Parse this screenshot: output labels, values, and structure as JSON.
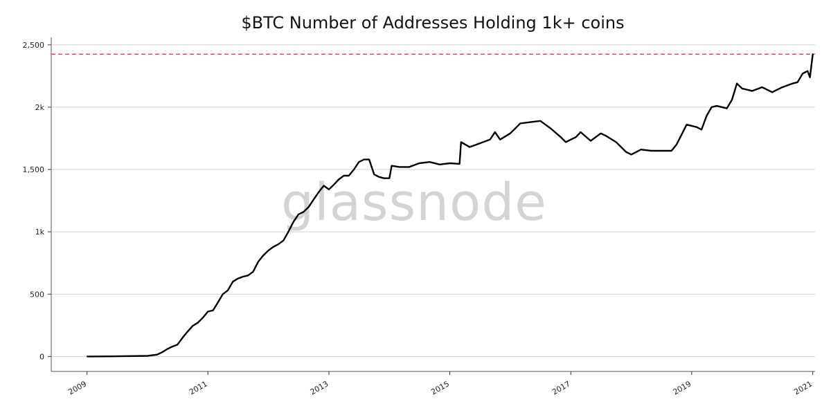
{
  "chart_data": {
    "type": "line",
    "title": "$BTC Number of Addresses Holding 1k+ coins",
    "xlabel": "",
    "ylabel": "",
    "watermark": "glassnode",
    "x_ticks": [
      "2009",
      "2011",
      "2013",
      "2015",
      "2017",
      "2019",
      "2021"
    ],
    "y_ticks": [
      {
        "value": 0,
        "label": "0"
      },
      {
        "value": 500,
        "label": "500"
      },
      {
        "value": 1000,
        "label": "1k"
      },
      {
        "value": 1500,
        "label": "1,500"
      },
      {
        "value": 2000,
        "label": "2k"
      },
      {
        "value": 2500,
        "label": "2,500"
      }
    ],
    "xlim": [
      "2008-05-30",
      "2021-01-15"
    ],
    "ylim": [
      -120,
      2560
    ],
    "grid": "horizontal",
    "line_color": "#000000",
    "reference_line": {
      "value": 2425,
      "color": "#e5454a",
      "style": "dashed"
    },
    "series": [
      {
        "values": [
          [
            "2009-01-03",
            0
          ],
          [
            "2009-06-01",
            1
          ],
          [
            "2010-01-01",
            5
          ],
          [
            "2010-03-01",
            15
          ],
          [
            "2010-04-01",
            35
          ],
          [
            "2010-05-01",
            60
          ],
          [
            "2010-06-01",
            80
          ],
          [
            "2010-07-01",
            95
          ],
          [
            "2010-08-01",
            150
          ],
          [
            "2010-09-01",
            200
          ],
          [
            "2010-10-01",
            245
          ],
          [
            "2010-11-01",
            270
          ],
          [
            "2010-12-01",
            310
          ],
          [
            "2011-01-01",
            360
          ],
          [
            "2011-02-01",
            370
          ],
          [
            "2011-03-01",
            430
          ],
          [
            "2011-04-01",
            500
          ],
          [
            "2011-05-01",
            530
          ],
          [
            "2011-06-01",
            600
          ],
          [
            "2011-07-01",
            625
          ],
          [
            "2011-08-01",
            640
          ],
          [
            "2011-09-01",
            650
          ],
          [
            "2011-10-01",
            680
          ],
          [
            "2011-11-01",
            760
          ],
          [
            "2011-12-01",
            810
          ],
          [
            "2012-01-01",
            850
          ],
          [
            "2012-02-01",
            880
          ],
          [
            "2012-03-01",
            900
          ],
          [
            "2012-04-01",
            930
          ],
          [
            "2012-05-01",
            1000
          ],
          [
            "2012-06-01",
            1080
          ],
          [
            "2012-07-01",
            1140
          ],
          [
            "2012-08-01",
            1160
          ],
          [
            "2012-09-01",
            1200
          ],
          [
            "2012-10-01",
            1260
          ],
          [
            "2012-11-01",
            1320
          ],
          [
            "2012-12-01",
            1370
          ],
          [
            "2013-01-01",
            1340
          ],
          [
            "2013-02-01",
            1380
          ],
          [
            "2013-03-01",
            1420
          ],
          [
            "2013-04-01",
            1450
          ],
          [
            "2013-05-01",
            1450
          ],
          [
            "2013-06-01",
            1500
          ],
          [
            "2013-07-01",
            1560
          ],
          [
            "2013-08-01",
            1580
          ],
          [
            "2013-09-01",
            1580
          ],
          [
            "2013-10-01",
            1460
          ],
          [
            "2013-11-01",
            1440
          ],
          [
            "2013-12-01",
            1430
          ],
          [
            "2014-01-01",
            1430
          ],
          [
            "2014-01-15",
            1530
          ],
          [
            "2014-03-01",
            1520
          ],
          [
            "2014-05-01",
            1520
          ],
          [
            "2014-07-01",
            1550
          ],
          [
            "2014-09-01",
            1560
          ],
          [
            "2014-11-01",
            1540
          ],
          [
            "2015-01-01",
            1550
          ],
          [
            "2015-03-01",
            1545
          ],
          [
            "2015-03-10",
            1720
          ],
          [
            "2015-05-01",
            1680
          ],
          [
            "2015-07-01",
            1710
          ],
          [
            "2015-09-01",
            1740
          ],
          [
            "2015-10-01",
            1800
          ],
          [
            "2015-11-01",
            1740
          ],
          [
            "2016-01-01",
            1790
          ],
          [
            "2016-02-01",
            1830
          ],
          [
            "2016-03-01",
            1870
          ],
          [
            "2016-05-01",
            1880
          ],
          [
            "2016-07-01",
            1890
          ],
          [
            "2016-09-01",
            1830
          ],
          [
            "2016-11-01",
            1760
          ],
          [
            "2016-12-01",
            1720
          ],
          [
            "2017-02-01",
            1760
          ],
          [
            "2017-03-01",
            1800
          ],
          [
            "2017-05-01",
            1730
          ],
          [
            "2017-07-01",
            1790
          ],
          [
            "2017-08-01",
            1770
          ],
          [
            "2017-10-01",
            1720
          ],
          [
            "2017-12-01",
            1640
          ],
          [
            "2018-01-01",
            1620
          ],
          [
            "2018-03-01",
            1660
          ],
          [
            "2018-05-01",
            1650
          ],
          [
            "2018-07-01",
            1650
          ],
          [
            "2018-09-01",
            1650
          ],
          [
            "2018-10-01",
            1700
          ],
          [
            "2018-11-01",
            1780
          ],
          [
            "2018-12-01",
            1860
          ],
          [
            "2019-02-01",
            1840
          ],
          [
            "2019-03-01",
            1820
          ],
          [
            "2019-04-01",
            1930
          ],
          [
            "2019-05-01",
            2000
          ],
          [
            "2019-06-01",
            2010
          ],
          [
            "2019-08-01",
            1990
          ],
          [
            "2019-09-01",
            2060
          ],
          [
            "2019-10-01",
            2190
          ],
          [
            "2019-11-01",
            2150
          ],
          [
            "2020-01-01",
            2130
          ],
          [
            "2020-03-01",
            2160
          ],
          [
            "2020-05-01",
            2120
          ],
          [
            "2020-07-01",
            2160
          ],
          [
            "2020-09-01",
            2190
          ],
          [
            "2020-10-01",
            2200
          ],
          [
            "2020-11-01",
            2270
          ],
          [
            "2020-12-01",
            2290
          ],
          [
            "2020-12-15",
            2240
          ],
          [
            "2021-01-01",
            2425
          ]
        ]
      }
    ]
  }
}
